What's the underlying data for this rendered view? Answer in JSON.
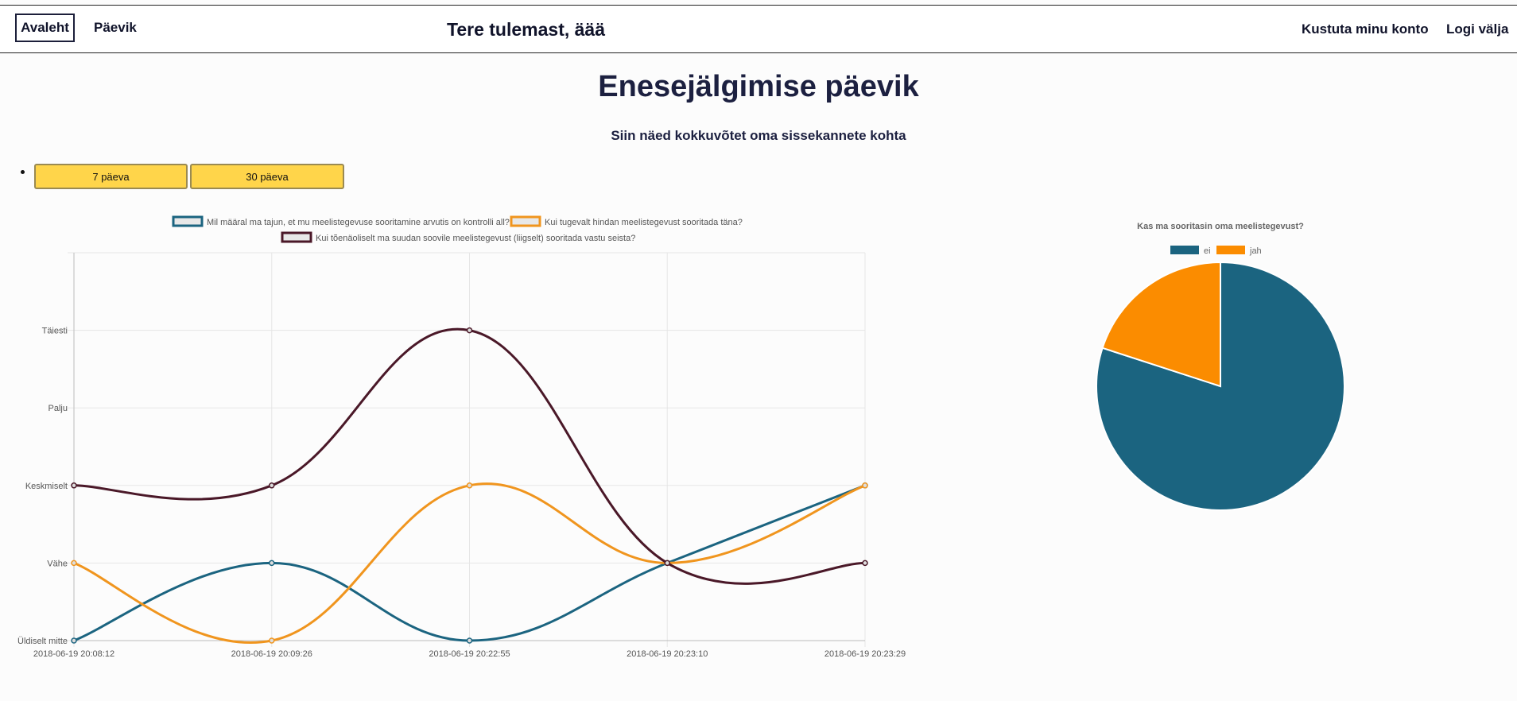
{
  "nav": {
    "home_label": "Avaleht",
    "diary_label": "Päevik",
    "welcome": "Tere tulemast, äää",
    "delete_account_label": "Kustuta minu konto",
    "logout_label": "Logi välja"
  },
  "page": {
    "title": "Enesejälgimise päevik",
    "subtitle": "Siin näed kokkuvõtet oma sissekannete kohta"
  },
  "range_buttons": {
    "week": "7 päeva",
    "month": "30 päeva"
  },
  "chart_data": [
    {
      "type": "line",
      "title": "",
      "x": [
        "2018-06-19 20:08:12",
        "2018-06-19 20:09:26",
        "2018-06-19 20:22:55",
        "2018-06-19 20:23:10",
        "2018-06-19 20:23:29"
      ],
      "y_categories": [
        "Üldiselt mitte",
        "Vähe",
        "Keskmiselt",
        "Palju",
        "Täiesti"
      ],
      "ylim": [
        0,
        5
      ],
      "grid": true,
      "legend_position": "top",
      "series": [
        {
          "name": "Mil määral ma tajun, et mu meelistegevuse sooritamine arvutis on kontrolli all?",
          "color": "#1b6480",
          "values": [
            0,
            1,
            0,
            1,
            2
          ]
        },
        {
          "name": "Kui tugevalt hindan meelistegevust sooritada täna?",
          "color": "#f0951e",
          "values": [
            1,
            0,
            2,
            1,
            2
          ]
        },
        {
          "name": "Kui tõenäoliselt ma suudan soovile meelistegevust (liigselt) sooritada vastu seista?",
          "color": "#4a1828",
          "values": [
            2,
            2,
            4,
            1,
            1
          ]
        }
      ]
    },
    {
      "type": "pie",
      "title": "Kas ma sooritasin oma meelistegevust?",
      "legend_position": "top",
      "categories": [
        "ei",
        "jah"
      ],
      "values": [
        80,
        20
      ],
      "colors": [
        "#1b6480",
        "#fb8c00"
      ]
    }
  ]
}
